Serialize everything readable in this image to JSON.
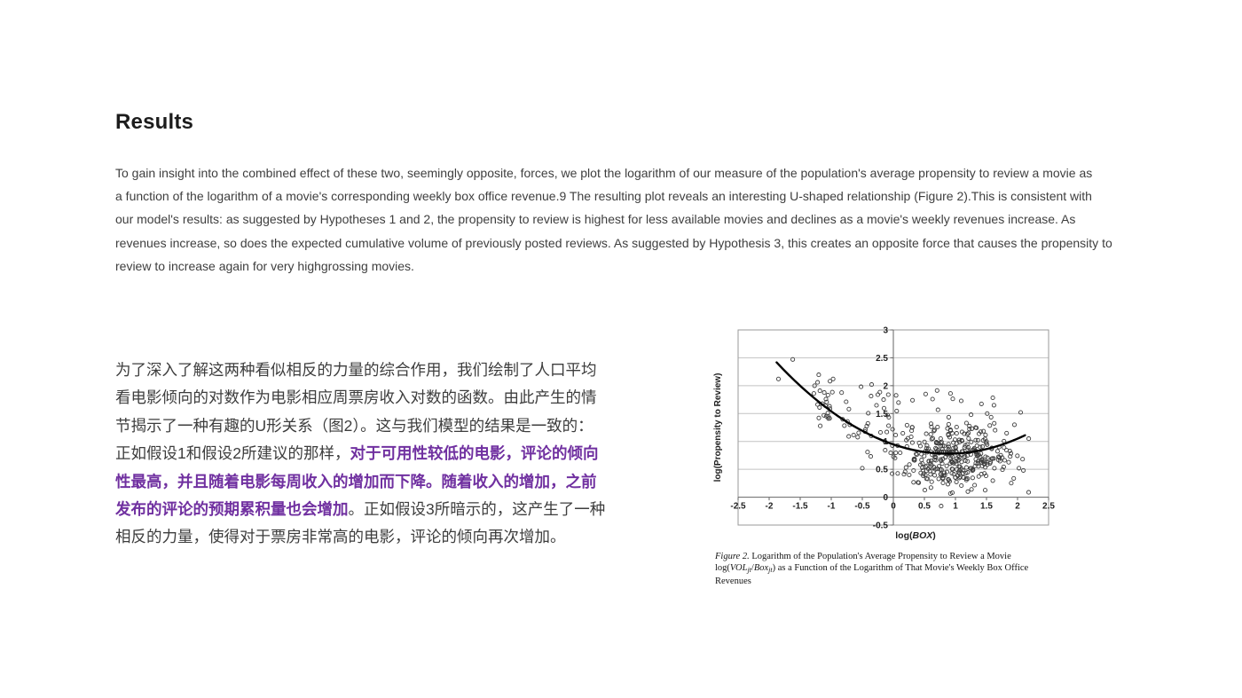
{
  "heading": {
    "text": "Results"
  },
  "english_paragraph": {
    "lines": [
      "To gain insight into the combined effect of these two, seemingly opposite, forces, we plot the logarithm of our measure of the population's average propensity to review a movie as",
      "a function of the logarithm of a movie's corresponding weekly box office revenue.9 The resulting plot reveals an interesting U-shaped relationship (Figure 2).This is consistent with",
      "our model's results: as suggested by Hypotheses 1 and 2, the propensity to review is highest for less available movies and declines as a movie's weekly revenues increase. As",
      "revenues increase, so does the expected cumulative volume of previously posted reviews. As suggested by Hypothesis 3, this creates an opposite force that causes the propensity to",
      "review to increase again for very highgrossing movies."
    ]
  },
  "chinese_paragraph": {
    "text_color": "#3d3d3d",
    "highlight_color": "#7030a0",
    "lines": [
      [
        {
          "t": "为了深入了解这两种看似相反的力量的综合作用，我们绘制了人口平均",
          "hl": false
        }
      ],
      [
        {
          "t": "看电影倾向的对数作为电影相应周票房收入对数的函数。由此产生的情",
          "hl": false
        }
      ],
      [
        {
          "t": "节揭示了一种有趣的U形关系（图2）。这与我们模型的结果是一致的：",
          "hl": false
        }
      ],
      [
        {
          "t": "正如假设1和假设2所建议的那样，",
          "hl": false
        },
        {
          "t": "对于可用性较低的电影，评论的倾向",
          "hl": true
        }
      ],
      [
        {
          "t": "性最高，并且随着电影每周收入的增加而下降。随着收入的增加，之前",
          "hl": true
        }
      ],
      [
        {
          "t": "发布的评论的预期累积量也会增加",
          "hl": true
        },
        {
          "t": "。正如假设3所暗示的，这产生了一种",
          "hl": false
        }
      ],
      [
        {
          "t": "相反的力量，使得对于票房非常高的电影，评论的倾向再次增加。",
          "hl": false
        }
      ]
    ]
  },
  "figure_caption": {
    "lines": [
      [
        {
          "t": "Figure 2.",
          "style": "italic"
        },
        {
          "t": " Logarithm of the Population's Average Propensity to Review a Movie",
          "style": "normal"
        }
      ],
      [
        {
          "t": "log(",
          "style": "normal"
        },
        {
          "t": "VOL",
          "style": "italic"
        },
        {
          "t": "jt",
          "style": "sub"
        },
        {
          "t": "/",
          "style": "normal"
        },
        {
          "t": "Box",
          "style": "italic"
        },
        {
          "t": "jt",
          "style": "sub"
        },
        {
          "t": ") as a Function of the Logarithm of That Movie's Weekly Box Office",
          "style": "normal"
        }
      ],
      [
        {
          "t": "Revenues",
          "style": "normal"
        }
      ]
    ]
  },
  "chart_data": {
    "type": "scatter",
    "title": "",
    "xlabel": "log(BOX)",
    "xlabel_segments": [
      {
        "t": "log(",
        "italic": false
      },
      {
        "t": "BOX",
        "italic": true
      },
      {
        "t": ")",
        "italic": false
      }
    ],
    "ylabel": "log(Propensity to Review)",
    "xlim": [
      -2.5,
      2.5
    ],
    "ylim": [
      -0.5,
      3
    ],
    "x_ticks": [
      -2.5,
      -2,
      -1.5,
      -1,
      -0.5,
      0,
      0.5,
      1,
      1.5,
      2,
      2.5
    ],
    "y_ticks": [
      -0.5,
      0,
      0.5,
      1,
      1.5,
      2,
      2.5,
      3
    ],
    "grid": "horizontal",
    "legend": "none",
    "axes_cross_at": [
      0,
      0
    ],
    "trend_curve": {
      "type": "quadratic",
      "a": 0.215,
      "vertex_x": 0.88,
      "vertex_y": 0.78,
      "x_min": -1.88,
      "x_max": 2.2
    },
    "scatter": {
      "seed": 42,
      "point_radius": 2.1,
      "clusters": [
        {
          "name": "main-cloud",
          "count": 330,
          "x_mean": 1.0,
          "x_sd": 0.45,
          "x_min": -0.15,
          "x_max": 2.25,
          "y_mean": 0.72,
          "y_sd": 0.27,
          "y_min": 0.05,
          "y_max": 1.5
        },
        {
          "name": "descending-band",
          "count": 60,
          "x_uniform": [
            -1.35,
            0.4
          ],
          "y_along_curve_sd": 0.22,
          "y_min": 0.15,
          "y_max": 2.2
        },
        {
          "name": "upper-sparse",
          "count": 22,
          "x_uniform": [
            -0.45,
            1.65
          ],
          "y_uniform": [
            1.42,
            1.92
          ]
        }
      ],
      "outlier_points": [
        [
          -1.85,
          2.12
        ],
        [
          -1.62,
          2.47
        ],
        [
          -1.22,
          2.06
        ],
        [
          -1.28,
          1.86
        ],
        [
          -1.2,
          1.42
        ],
        [
          -1.02,
          2.08
        ],
        [
          -0.97,
          2.12
        ],
        [
          -0.52,
          1.98
        ],
        [
          -0.35,
          2.02
        ],
        [
          0.52,
          1.85
        ],
        [
          0.92,
          1.86
        ],
        [
          2.05,
          1.52
        ],
        [
          1.95,
          1.3
        ],
        [
          2.18,
          1.05
        ],
        [
          1.62,
          1.65
        ],
        [
          0.77,
          -0.16
        ],
        [
          0.95,
          0.08
        ],
        [
          1.2,
          0.1
        ],
        [
          -0.7,
          1.3
        ],
        [
          -0.5,
          0.52
        ]
      ]
    },
    "colors": {
      "point_stroke": "#3c3c3c",
      "curve": "#000000",
      "gridline": "#c2c2c2",
      "axis": "#666666",
      "frame": "#9a9a9a",
      "label": "#1f1f1f"
    }
  }
}
